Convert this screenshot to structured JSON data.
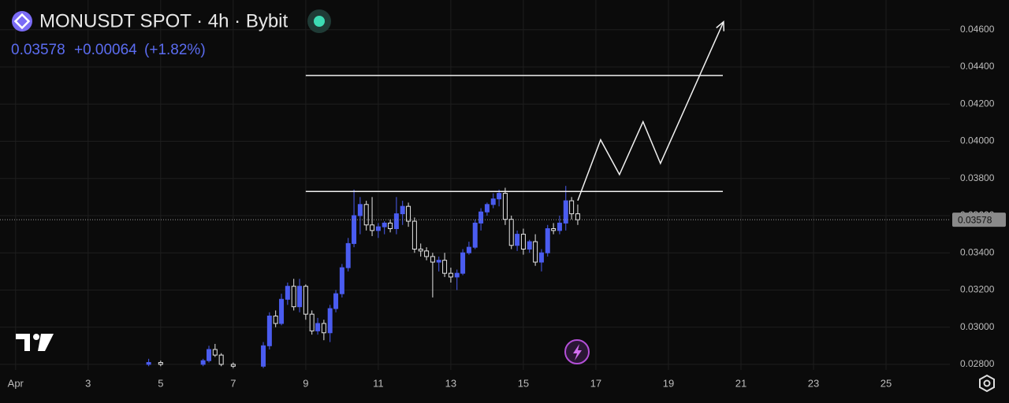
{
  "chart_data": {
    "type": "candlestick",
    "title": "MONUSDT SPOT · 4h · Bybit",
    "last_price": {
      "value": 0.03578,
      "label": "0.03578"
    },
    "change": "+0.00064",
    "change_pct": "(+1.82%)",
    "up_color": "#4a5cf0",
    "down_color": "#e6e6e6",
    "grid": true,
    "xlim": [
      0.57,
      26.76
    ],
    "ylim": [
      0.0277,
      0.0476
    ],
    "xticks": [
      {
        "value": 1,
        "label": "Apr"
      },
      3,
      5,
      7,
      9,
      11,
      13,
      15,
      17,
      19,
      21,
      23,
      25
    ],
    "yticks": [
      {
        "value": 0.028,
        "label": "0.02800"
      },
      {
        "value": 0.03,
        "label": "0.03000"
      },
      {
        "value": 0.032,
        "label": "0.03200"
      },
      {
        "value": 0.034,
        "label": "0.03400"
      },
      {
        "value": 0.036,
        "label": "0.03600"
      },
      {
        "value": 0.038,
        "label": "0.03800"
      },
      {
        "value": 0.04,
        "label": "0.04000"
      },
      {
        "value": 0.042,
        "label": "0.04200"
      },
      {
        "value": 0.044,
        "label": "0.04400"
      },
      {
        "value": 0.046,
        "label": "0.04600"
      }
    ],
    "x": [
      4.67,
      5.0,
      6.17,
      6.33,
      6.5,
      6.67,
      7.0,
      7.83,
      8.0,
      8.17,
      8.33,
      8.5,
      8.67,
      8.83,
      9.0,
      9.17,
      9.33,
      9.5,
      9.67,
      9.83,
      10.0,
      10.17,
      10.33,
      10.5,
      10.67,
      10.83,
      11.0,
      11.17,
      11.33,
      11.5,
      11.67,
      11.83,
      12.0,
      12.17,
      12.33,
      12.5,
      12.67,
      12.83,
      13.0,
      13.17,
      13.33,
      13.5,
      13.67,
      13.83,
      14.0,
      14.17,
      14.33,
      14.5,
      14.67,
      14.83,
      15.0,
      15.17,
      15.33,
      15.5,
      15.67,
      15.83,
      16.0,
      16.17,
      16.33,
      16.5
    ],
    "open": [
      0.028,
      0.0281,
      0.028,
      0.0282,
      0.0288,
      0.0285,
      0.028,
      0.0279,
      0.029,
      0.0306,
      0.0302,
      0.0315,
      0.0322,
      0.0311,
      0.0322,
      0.0307,
      0.0298,
      0.0302,
      0.0297,
      0.031,
      0.0318,
      0.0332,
      0.0345,
      0.036,
      0.0366,
      0.0355,
      0.0352,
      0.0354,
      0.0356,
      0.0353,
      0.0361,
      0.0365,
      0.0357,
      0.0342,
      0.0341,
      0.0338,
      0.0335,
      0.0336,
      0.0329,
      0.0327,
      0.0329,
      0.034,
      0.0343,
      0.0356,
      0.0362,
      0.0366,
      0.0369,
      0.0372,
      0.0358,
      0.0344,
      0.035,
      0.0342,
      0.0346,
      0.0335,
      0.034,
      0.0353,
      0.0352,
      0.0356,
      0.0368,
      0.0361
    ],
    "high": [
      0.0283,
      0.0282,
      0.0283,
      0.029,
      0.0291,
      0.0286,
      0.0281,
      0.0292,
      0.0308,
      0.0309,
      0.0318,
      0.0324,
      0.0326,
      0.0326,
      0.0323,
      0.0309,
      0.0305,
      0.0304,
      0.0312,
      0.032,
      0.0334,
      0.0348,
      0.0374,
      0.037,
      0.0368,
      0.037,
      0.0356,
      0.0357,
      0.0358,
      0.037,
      0.0368,
      0.0367,
      0.0359,
      0.0345,
      0.0343,
      0.034,
      0.0338,
      0.034,
      0.0332,
      0.0331,
      0.0342,
      0.0346,
      0.0358,
      0.0364,
      0.0367,
      0.0372,
      0.0374,
      0.0375,
      0.036,
      0.0352,
      0.0353,
      0.0347,
      0.035,
      0.0342,
      0.0355,
      0.0356,
      0.036,
      0.0376,
      0.037,
      0.0366
    ],
    "low": [
      0.0279,
      0.0279,
      0.0279,
      0.0281,
      0.0284,
      0.0279,
      0.0278,
      0.0278,
      0.0288,
      0.03,
      0.0301,
      0.0312,
      0.0309,
      0.0308,
      0.0304,
      0.0296,
      0.0296,
      0.0293,
      0.0292,
      0.0308,
      0.0316,
      0.033,
      0.0343,
      0.035,
      0.0352,
      0.0349,
      0.0348,
      0.035,
      0.0351,
      0.035,
      0.0355,
      0.0354,
      0.034,
      0.0338,
      0.0336,
      0.0316,
      0.033,
      0.0327,
      0.0324,
      0.032,
      0.0328,
      0.0339,
      0.0342,
      0.0352,
      0.036,
      0.0364,
      0.0365,
      0.0355,
      0.0342,
      0.0341,
      0.0339,
      0.034,
      0.0333,
      0.033,
      0.0338,
      0.035,
      0.035,
      0.0352,
      0.0358,
      0.0355
    ],
    "close": [
      0.0281,
      0.028,
      0.0282,
      0.0288,
      0.0285,
      0.028,
      0.0279,
      0.029,
      0.0306,
      0.0302,
      0.0315,
      0.0322,
      0.0311,
      0.0322,
      0.0307,
      0.0298,
      0.0302,
      0.0297,
      0.031,
      0.0318,
      0.0332,
      0.0345,
      0.036,
      0.0366,
      0.0355,
      0.0352,
      0.0354,
      0.0356,
      0.0353,
      0.0361,
      0.0365,
      0.0357,
      0.0342,
      0.0341,
      0.0338,
      0.0335,
      0.0336,
      0.0329,
      0.0327,
      0.0329,
      0.034,
      0.0343,
      0.0356,
      0.0362,
      0.0366,
      0.0369,
      0.0372,
      0.0358,
      0.0344,
      0.035,
      0.0342,
      0.0346,
      0.0335,
      0.034,
      0.0353,
      0.0352,
      0.0356,
      0.0368,
      0.0361,
      0.03578
    ],
    "levels": [
      {
        "value": 0.04354,
        "x": [
          9,
          20.5
        ]
      },
      {
        "value": 0.0373,
        "x": [
          9,
          20.5
        ]
      }
    ],
    "projection": {
      "x": [
        16.5,
        17.13,
        17.65,
        18.3,
        18.78,
        20.52
      ],
      "y": [
        0.03681,
        0.04008,
        0.03821,
        0.04105,
        0.03881,
        0.04643
      ]
    }
  }
}
